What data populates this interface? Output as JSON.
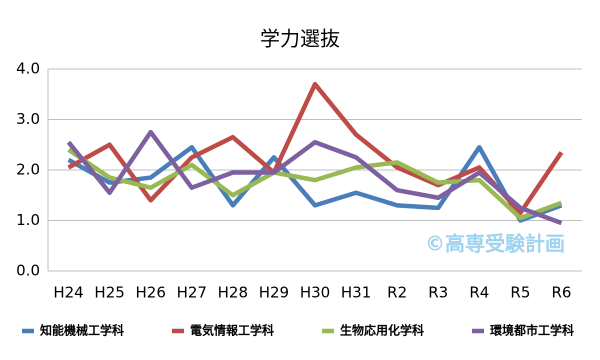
{
  "chart_data": {
    "type": "line",
    "title": "学力選抜",
    "categories": [
      "H24",
      "H25",
      "H26",
      "H27",
      "H28",
      "H29",
      "H30",
      "H31",
      "R2",
      "R3",
      "R4",
      "R5",
      "R6"
    ],
    "series": [
      {
        "name": "知能機械工学科",
        "color": "#4a7ebb",
        "values": [
          2.2,
          1.75,
          1.85,
          2.45,
          1.3,
          2.25,
          1.3,
          1.55,
          1.3,
          1.25,
          2.45,
          1.0,
          1.3
        ]
      },
      {
        "name": "電気情報工学科",
        "color": "#be4b48",
        "values": [
          2.05,
          2.5,
          1.4,
          2.25,
          2.65,
          1.95,
          3.7,
          2.7,
          2.05,
          1.7,
          2.05,
          1.15,
          2.35
        ]
      },
      {
        "name": "生物応用化学科",
        "color": "#98b954",
        "values": [
          2.4,
          1.85,
          1.65,
          2.1,
          1.5,
          1.95,
          1.8,
          2.05,
          2.15,
          1.75,
          1.8,
          1.05,
          1.35
        ]
      },
      {
        "name": "環境都市工学科",
        "color": "#7d60a0",
        "values": [
          2.55,
          1.55,
          2.75,
          1.65,
          1.95,
          1.95,
          2.55,
          2.25,
          1.6,
          1.45,
          1.95,
          1.25,
          0.95
        ]
      }
    ],
    "ylim": [
      0,
      4
    ],
    "yticks": [
      {
        "value": 0,
        "label": "0.0"
      },
      {
        "value": 1,
        "label": "1.0"
      },
      {
        "value": 2,
        "label": "2.0"
      },
      {
        "value": 3,
        "label": "3.0"
      },
      {
        "value": 4,
        "label": "4.0"
      }
    ],
    "grid": true,
    "legend": "bottom",
    "annotation": "©高専受験計画"
  }
}
